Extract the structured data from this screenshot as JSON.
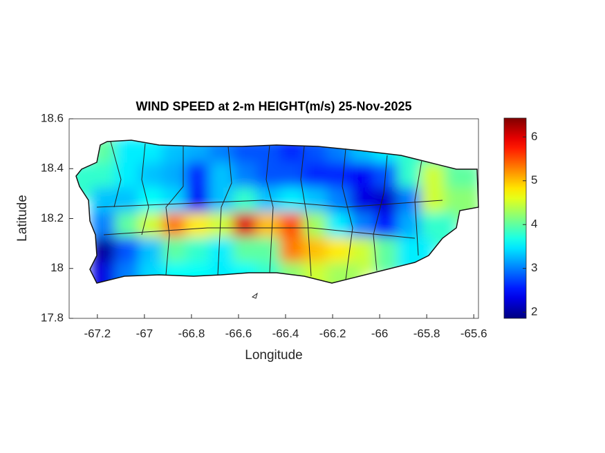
{
  "chart_data": {
    "type": "heatmap",
    "title": "WIND SPEED at 2-m HEIGHT(m/s) 25-Nov-2025",
    "xlabel": "Longitude",
    "ylabel": "Latitude",
    "xlim": [
      -67.32,
      -65.58
    ],
    "ylim": [
      17.8,
      18.6
    ],
    "xticks": [
      -67.2,
      -67,
      -66.8,
      -66.6,
      -66.4,
      -66.2,
      -66,
      -65.8,
      -65.6
    ],
    "yticks": [
      17.8,
      18,
      18.2,
      18.4,
      18.6
    ],
    "colormap": "jet",
    "clim": [
      1.86,
      6.43
    ],
    "cticks": [
      2,
      3,
      4,
      5,
      6
    ],
    "x": [
      -67.25,
      -67.15,
      -67.05,
      -66.95,
      -66.85,
      -66.75,
      -66.65,
      -66.55,
      -66.45,
      -66.35,
      -66.25,
      -66.15,
      -66.05,
      -65.95,
      -65.85,
      -65.75,
      -65.65
    ],
    "y": [
      18.45,
      18.35,
      18.25,
      18.15,
      18.05,
      17.95
    ],
    "z": [
      [
        null,
        4.0,
        3.5,
        3.5,
        3.3,
        3.2,
        3.0,
        2.8,
        2.8,
        2.6,
        2.8,
        3.0,
        3.3,
        3.5,
        3.8,
        3.8,
        null
      ],
      [
        3.8,
        3.8,
        3.5,
        3.3,
        3.2,
        2.6,
        3.3,
        3.0,
        2.8,
        2.8,
        2.6,
        2.6,
        2.4,
        2.8,
        3.8,
        4.5,
        4.0
      ],
      [
        null,
        3.3,
        3.3,
        3.6,
        3.4,
        2.4,
        3.3,
        3.8,
        3.3,
        3.5,
        3.3,
        3.0,
        2.3,
        2.2,
        3.0,
        4.5,
        4.2
      ],
      [
        null,
        3.0,
        4.0,
        4.5,
        5.3,
        4.8,
        4.5,
        6.0,
        5.0,
        5.5,
        4.3,
        3.5,
        3.0,
        2.5,
        3.2,
        3.8,
        null
      ],
      [
        null,
        2.0,
        2.8,
        3.3,
        4.0,
        3.8,
        3.5,
        4.0,
        4.0,
        5.3,
        5.0,
        4.8,
        4.5,
        4.0,
        3.5,
        null,
        null
      ],
      [
        null,
        2.3,
        3.0,
        3.4,
        3.6,
        3.6,
        3.5,
        3.6,
        3.8,
        4.2,
        4.5,
        4.3,
        null,
        null,
        null,
        null,
        null
      ]
    ]
  }
}
